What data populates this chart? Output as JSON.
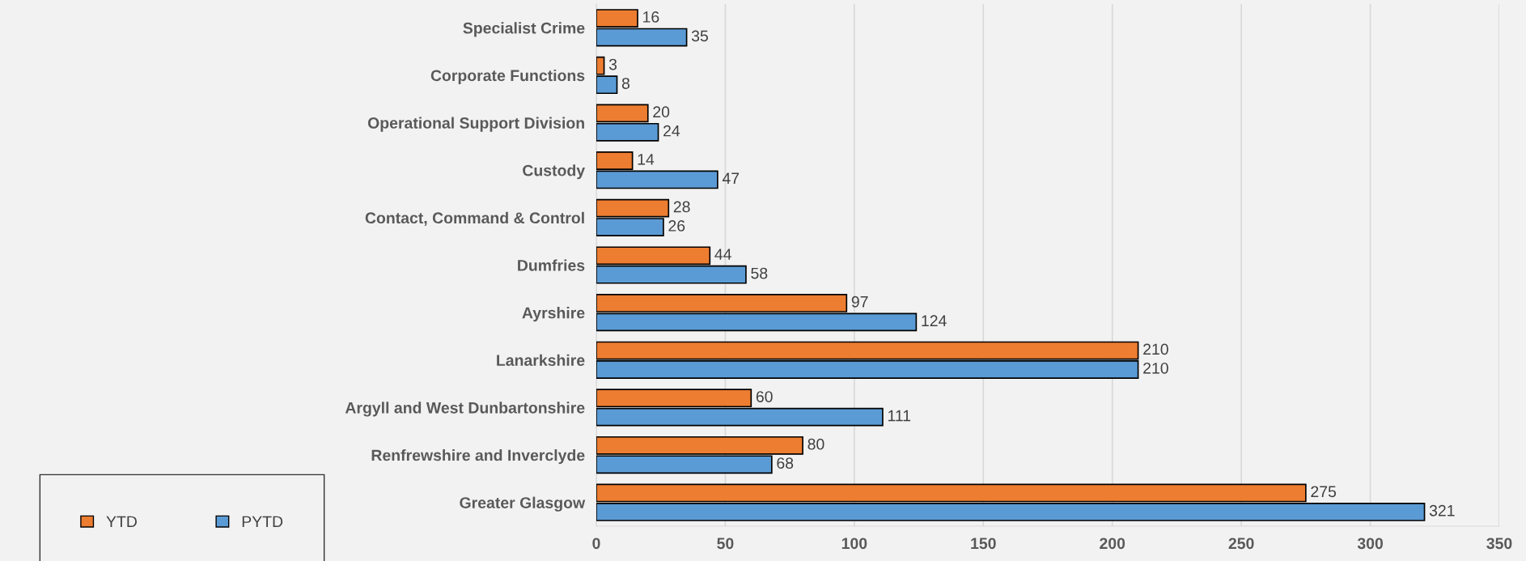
{
  "chart_data": {
    "type": "bar",
    "orientation": "horizontal",
    "categories": [
      "Specialist Crime",
      "Corporate Functions",
      "Operational Support Division",
      "Custody",
      "Contact, Command & Control",
      "Dumfries",
      "Ayrshire",
      "Lanarkshire",
      "Argyll and West Dunbartonshire",
      "Renfrewshire and Inverclyde",
      "Greater Glasgow"
    ],
    "series": [
      {
        "name": "YTD",
        "color": "#ed7d31",
        "values": [
          16,
          3,
          20,
          14,
          28,
          44,
          97,
          210,
          60,
          80,
          275
        ]
      },
      {
        "name": "PYTD",
        "color": "#5b9bd5",
        "values": [
          35,
          8,
          24,
          47,
          26,
          58,
          124,
          210,
          111,
          68,
          321
        ]
      }
    ],
    "xlim": [
      0,
      350
    ],
    "xticks": [
      0,
      50,
      100,
      150,
      200,
      250,
      300,
      350
    ],
    "grid": "x",
    "legend": "bottom left",
    "data_labels": true
  }
}
